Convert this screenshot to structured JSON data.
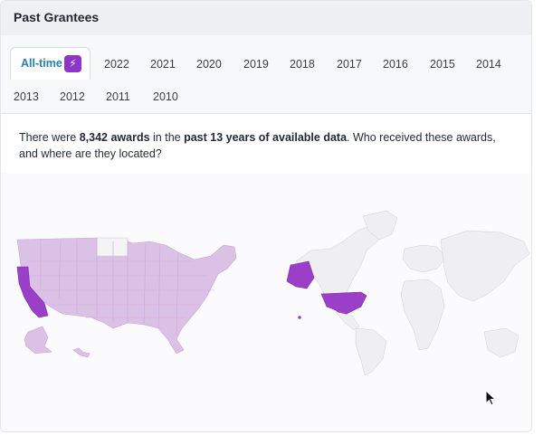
{
  "card": {
    "title": "Past Grantees"
  },
  "tabs": {
    "active_label": "All-time",
    "active_icon": "lightning-icon",
    "years": [
      "2022",
      "2021",
      "2020",
      "2019",
      "2018",
      "2017",
      "2016",
      "2015",
      "2014",
      "2013",
      "2012",
      "2011",
      "2010"
    ]
  },
  "summary": {
    "prefix": "There were ",
    "count": "8,342 awards",
    "middle": " in the ",
    "period": "past 13 years of available data",
    "suffix": ". Who received these awards, and where are they located?"
  },
  "colors": {
    "accent": "#2a7fb0",
    "highlight_strong": "#9b3fc9",
    "highlight_light": "#dcc1e6",
    "no_data": "#f4f4f5",
    "world_base": "#efeff1"
  },
  "maps": {
    "us_map": {
      "highlighted_state": "California"
    },
    "world_map": {
      "highlighted_country": "United States"
    }
  }
}
